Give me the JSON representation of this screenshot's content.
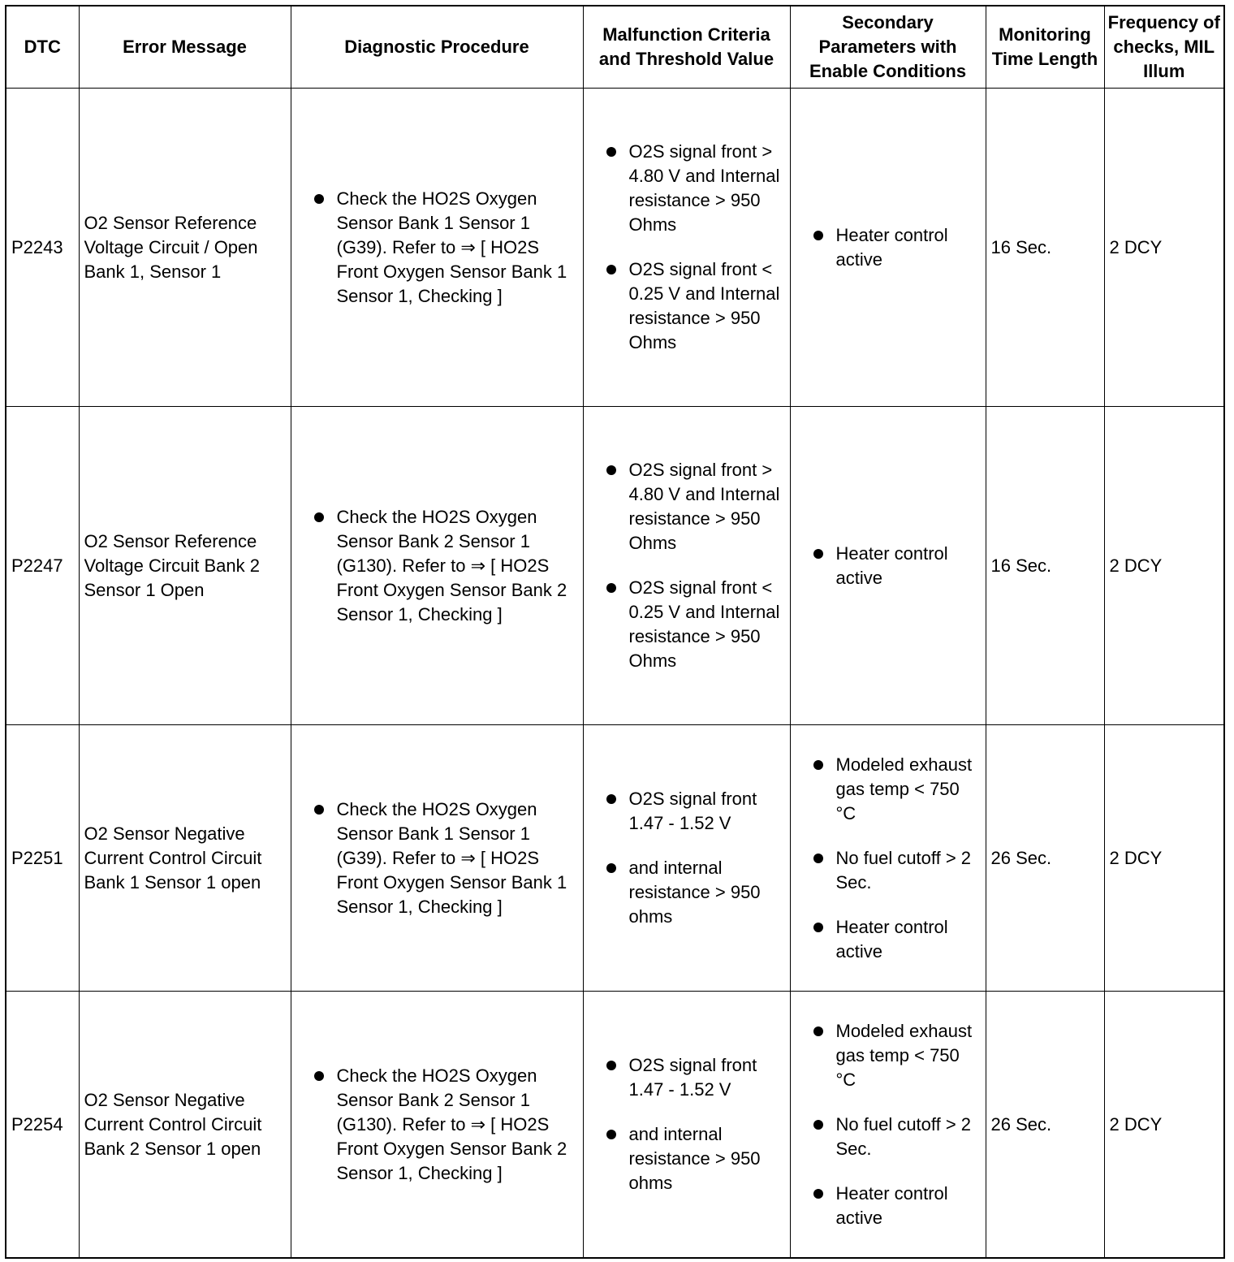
{
  "headers": [
    "DTC",
    "Error Message",
    "Diagnostic Procedure",
    "Malfunction Criteria and Threshold Value",
    "Secondary Parameters with Enable Conditions",
    "Monitoring Time Length",
    "Frequency of checks, MIL Illum"
  ],
  "rows": [
    {
      "dtc": "P2243",
      "error": "O2 Sensor Reference Voltage Circuit / Open Bank 1, Sensor 1",
      "procedure": [
        "Check the HO2S Oxygen Sensor Bank 1 Sensor 1 (G39). Refer to ⇒ [ HO2S Front Oxygen Sensor Bank 1 Sensor 1, Checking ]"
      ],
      "criteria": [
        "O2S signal front > 4.80 V and Internal resistance > 950 Ohms",
        "O2S signal front < 0.25 V and Internal resistance > 950 Ohms"
      ],
      "secondary": [
        "Heater control active"
      ],
      "time": "16 Sec.",
      "frequency": "2 DCY"
    },
    {
      "dtc": "P2247",
      "error": "O2 Sensor Reference Voltage Circuit Bank 2 Sensor 1 Open",
      "procedure": [
        "Check the HO2S Oxygen Sensor Bank 2 Sensor 1 (G130). Refer to ⇒ [ HO2S Front Oxygen Sensor Bank 2 Sensor 1, Checking ]"
      ],
      "criteria": [
        "O2S signal front > 4.80 V and Internal resistance > 950 Ohms",
        "O2S signal front < 0.25 V and Internal resistance > 950 Ohms"
      ],
      "secondary": [
        "Heater control active"
      ],
      "time": "16 Sec.",
      "frequency": "2 DCY"
    },
    {
      "dtc": "P2251",
      "error": "O2 Sensor Negative Current Control Circuit Bank 1 Sensor 1 open",
      "procedure": [
        "Check the HO2S Oxygen Sensor Bank 1 Sensor 1 (G39). Refer to ⇒ [ HO2S Front Oxygen Sensor Bank 1 Sensor 1, Checking ]"
      ],
      "criteria": [
        "O2S signal front 1.47 - 1.52 V",
        "and internal resistance > 950 ohms"
      ],
      "secondary": [
        "Modeled exhaust gas temp < 750 °C",
        "No fuel cutoff > 2 Sec.",
        "Heater control active"
      ],
      "time": "26 Sec.",
      "frequency": "2 DCY"
    },
    {
      "dtc": "P2254",
      "error": "O2 Sensor Negative Current Control Circuit Bank 2 Sensor 1 open",
      "procedure": [
        "Check the HO2S Oxygen Sensor Bank 2 Sensor 1 (G130). Refer to ⇒ [ HO2S Front Oxygen Sensor Bank 2 Sensor 1, Checking ]"
      ],
      "criteria": [
        "O2S signal front 1.47 - 1.52 V",
        "and internal resistance > 950 ohms"
      ],
      "secondary": [
        "Modeled exhaust gas temp < 750 °C",
        "No fuel cutoff > 2 Sec.",
        "Heater control active"
      ],
      "time": "26 Sec.",
      "frequency": "2 DCY"
    }
  ]
}
